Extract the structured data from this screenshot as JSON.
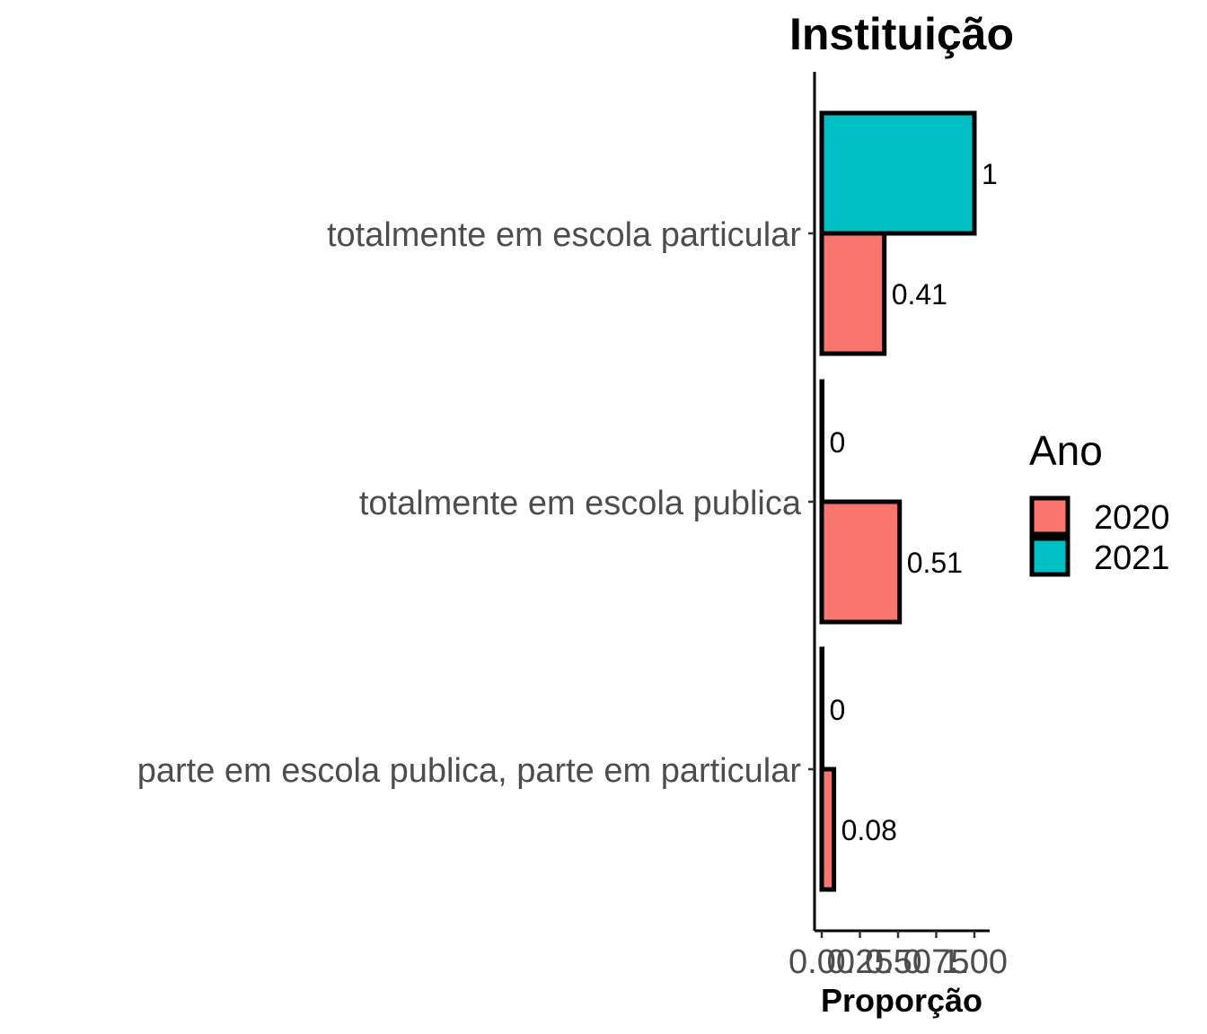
{
  "chart_data": {
    "type": "bar",
    "orientation": "horizontal",
    "title": "Instituição",
    "xlabel": "Proporção",
    "ylabel": "",
    "xlim": [
      0,
      1
    ],
    "x_ticks": [
      0,
      0.25,
      0.5,
      0.75,
      1
    ],
    "x_tick_labels": [
      "0.00",
      "0.25",
      "0.50",
      "0.75",
      "1.00"
    ],
    "categories": [
      "totalmente em escola particular",
      "totalmente em escola publica",
      "parte em escola publica, parte em particular"
    ],
    "series": [
      {
        "name": "2020",
        "color": "#F8766D",
        "values": [
          0.41,
          0.51,
          0.08
        ],
        "labels": [
          "0.41",
          "0.51",
          "0.08"
        ]
      },
      {
        "name": "2021",
        "color": "#00BFC4",
        "values": [
          1,
          0,
          0
        ],
        "labels": [
          "1",
          "0",
          "0"
        ]
      }
    ],
    "legend": {
      "title": "Ano",
      "position": "right",
      "entries": [
        "2020",
        "2021"
      ]
    }
  }
}
